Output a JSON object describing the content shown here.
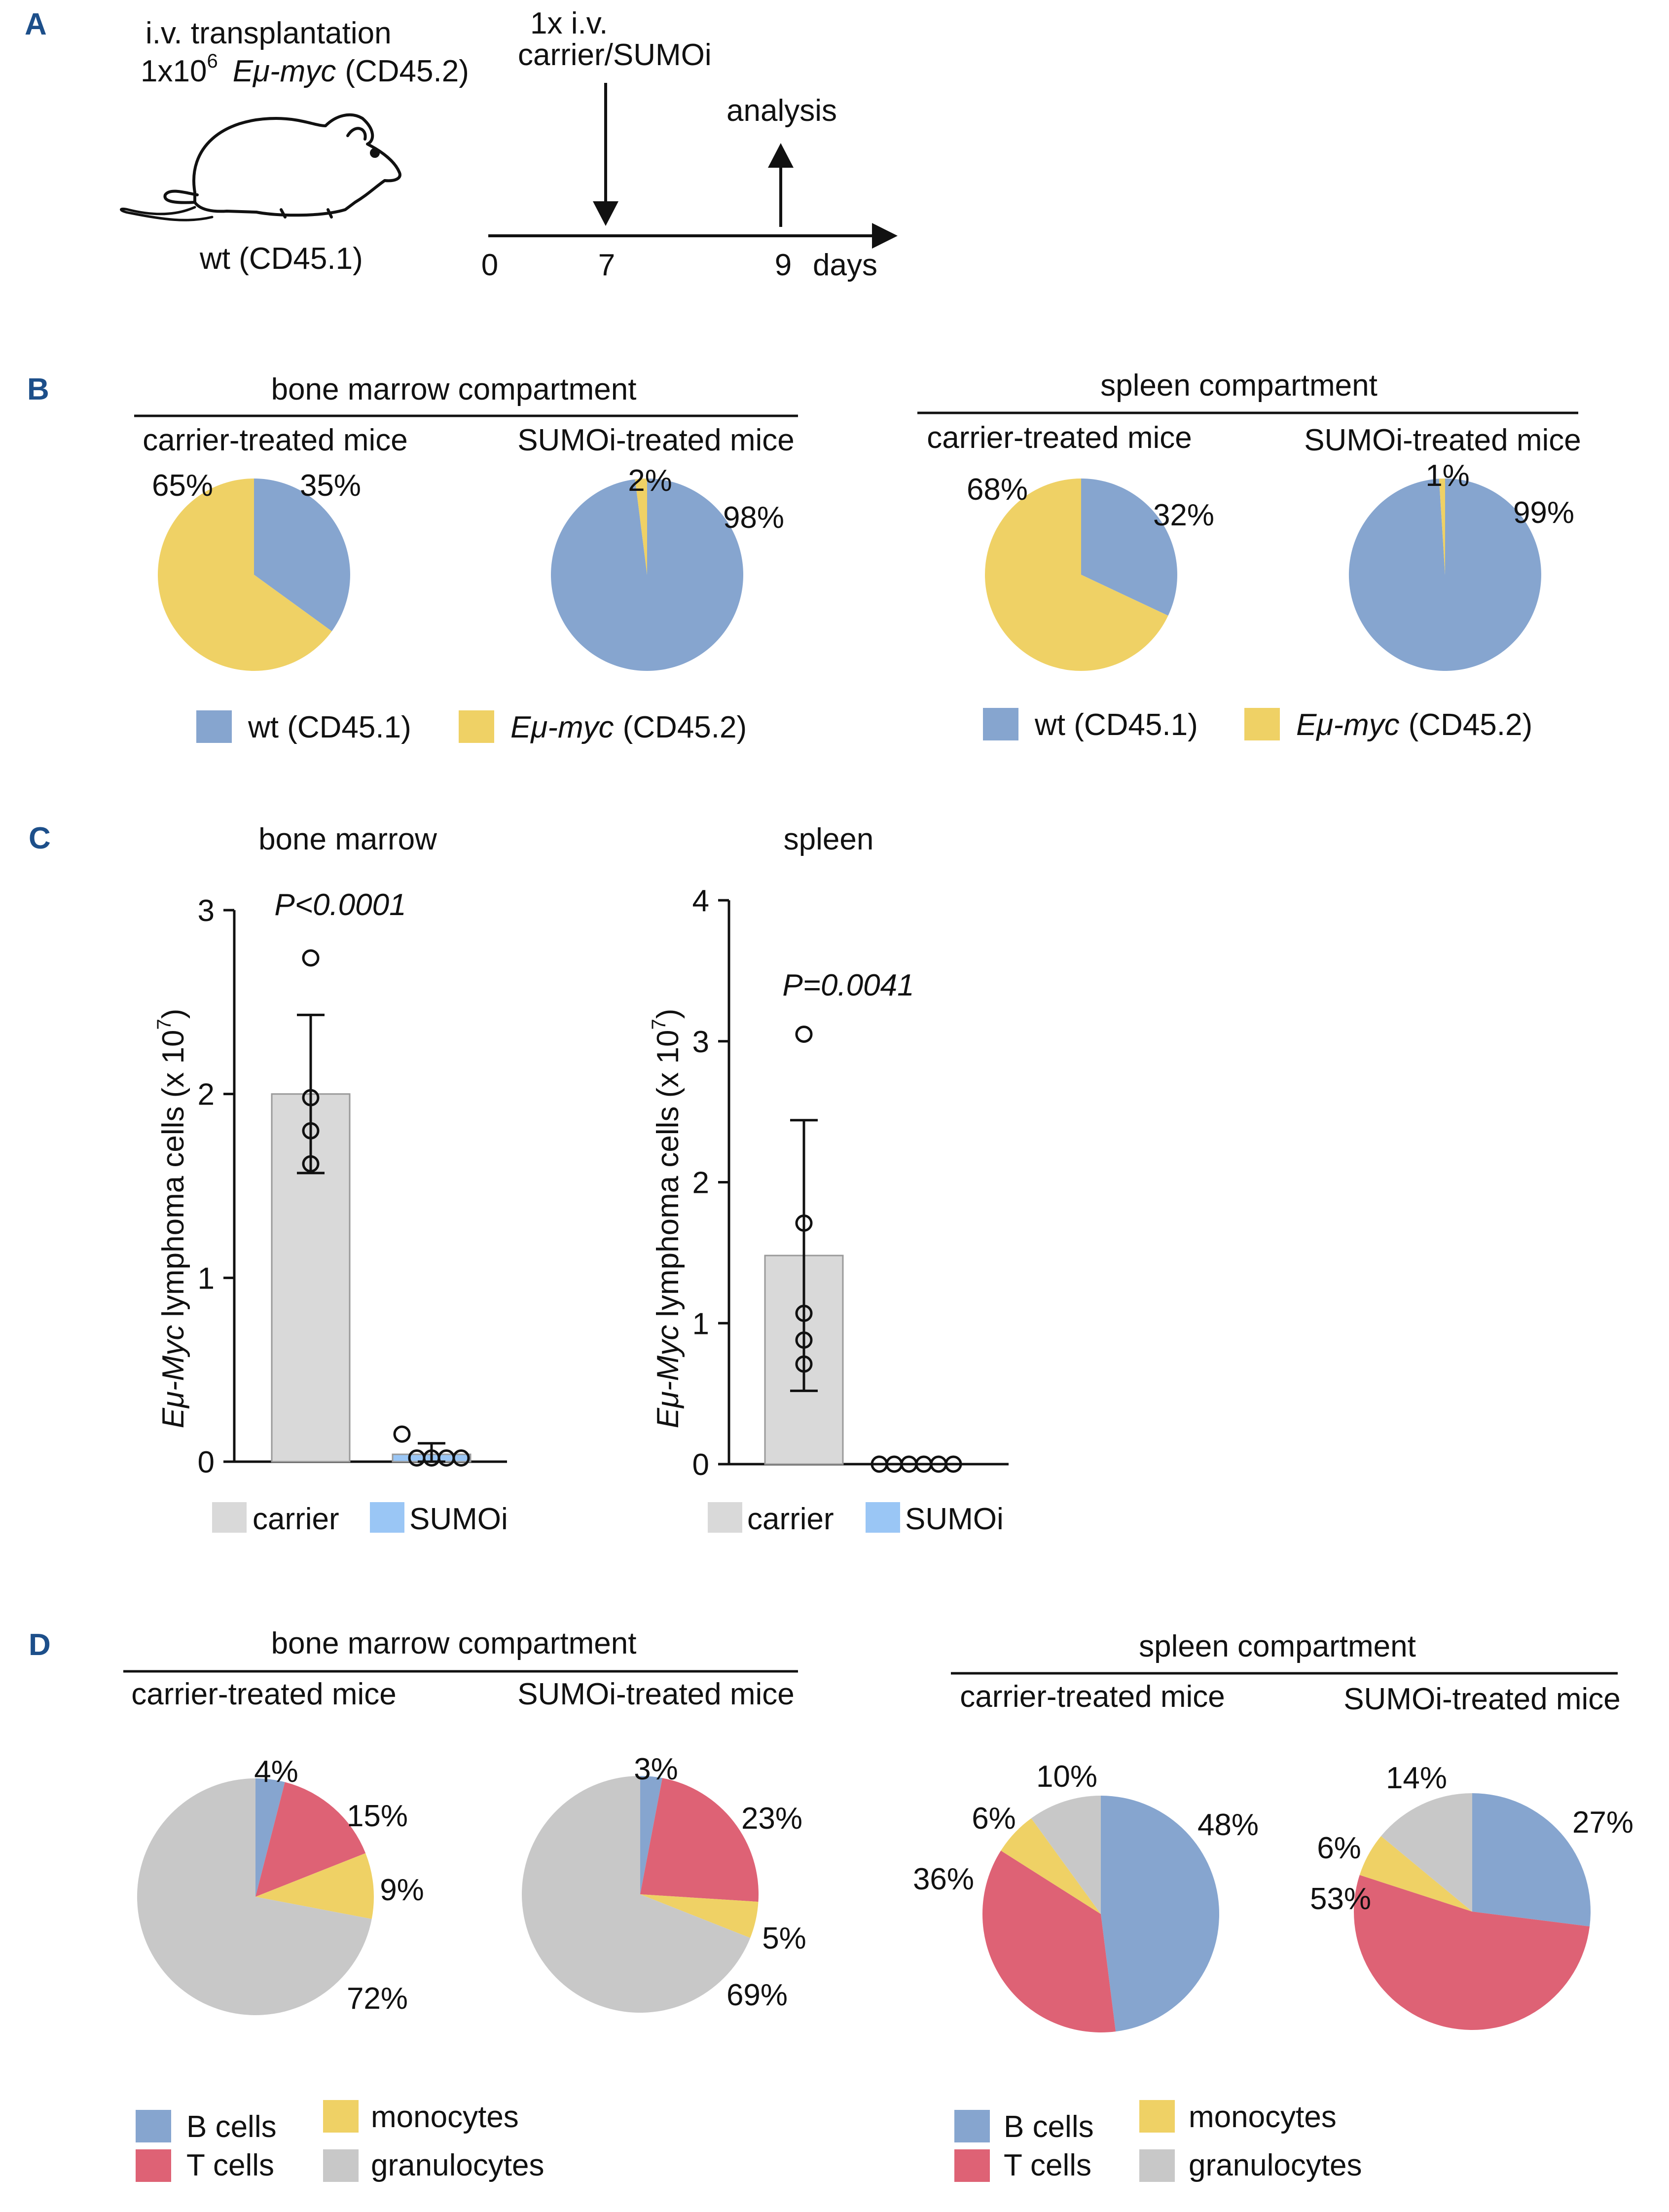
{
  "colors": {
    "wt": "#86a5cf",
    "emu": "#efd165",
    "carrier_bar": "#d9d9d9",
    "sumoi_bar": "#9ac6f5",
    "b_cells": "#86a5cf",
    "t_cells": "#de6275",
    "monocytes": "#efd165",
    "granulocytes": "#c8c8c8",
    "panel_letter": "#1d4f8a"
  },
  "panel_a": {
    "letter": "A",
    "transplant_line1": "i.v. transplantation",
    "transplant_count_prefix": "1x10",
    "transplant_count_exp": "6",
    "transplant_italic": "Eμ-myc",
    "transplant_suffix": "(CD45.2)",
    "host_label": "wt (CD45.1)",
    "treatment_line1": "1x i.v.",
    "treatment_line2": "carrier/SUMOi",
    "analysis_label": "analysis",
    "timeline_ticks": [
      "0",
      "7",
      "9"
    ],
    "days_label": "days"
  },
  "panel_b": {
    "letter": "B",
    "groups": [
      {
        "compartment": "bone marrow compartment",
        "charts": [
          {
            "title": "carrier-treated mice",
            "wt_label": "35%",
            "emu_label": "65%"
          },
          {
            "title": "SUMOi-treated mice",
            "wt_label": "98%",
            "emu_label": "2%"
          }
        ],
        "legend_wt": "wt (CD45.1)",
        "legend_emu_italic": "Eμ-myc",
        "legend_emu_suffix": "(CD45.2)"
      },
      {
        "compartment": "spleen compartment",
        "charts": [
          {
            "title": "carrier-treated mice",
            "wt_label": "32%",
            "emu_label": "68%"
          },
          {
            "title": "SUMOi-treated mice",
            "wt_label": "99%",
            "emu_label": "1%"
          }
        ],
        "legend_wt": "wt (CD45.1)",
        "legend_emu_italic": "Eμ-myc",
        "legend_emu_suffix": "(CD45.2)"
      }
    ]
  },
  "panel_c": {
    "letter": "C",
    "ylabel_italic": "Eμ-Myc",
    "ylabel_rest": "lymphoma cells (x 10",
    "ylabel_exp": "7",
    "ylabel_close": ")",
    "legend": [
      "carrier",
      "SUMOi"
    ]
  },
  "panel_d": {
    "letter": "D",
    "groups": [
      {
        "compartment": "bone marrow compartment",
        "charts": [
          {
            "title": "carrier-treated mice",
            "labels": [
              "4%",
              "15%",
              "9%",
              "72%"
            ]
          },
          {
            "title": "SUMOi-treated mice",
            "labels": [
              "3%",
              "23%",
              "5%",
              "69%"
            ]
          }
        ]
      },
      {
        "compartment": "spleen compartment",
        "charts": [
          {
            "title": "carrier-treated mice",
            "labels": [
              "48%",
              "36%",
              "6%",
              "10%"
            ]
          },
          {
            "title": "SUMOi-treated mice",
            "labels": [
              "27%",
              "53%",
              "6%",
              "14%"
            ]
          }
        ]
      }
    ],
    "legend": [
      "B cells",
      "T cells",
      "monocytes",
      "granulocytes"
    ]
  },
  "chart_data": [
    {
      "type": "pie",
      "panel": "B",
      "title": "bone marrow compartment — carrier-treated mice",
      "labels": [
        "wt (CD45.1)",
        "Eμ-myc (CD45.2)"
      ],
      "values": [
        35,
        65
      ]
    },
    {
      "type": "pie",
      "panel": "B",
      "title": "bone marrow compartment — SUMOi-treated mice",
      "labels": [
        "wt (CD45.1)",
        "Eμ-myc (CD45.2)"
      ],
      "values": [
        98,
        2
      ]
    },
    {
      "type": "pie",
      "panel": "B",
      "title": "spleen compartment — carrier-treated mice",
      "labels": [
        "wt (CD45.1)",
        "Eμ-myc (CD45.2)"
      ],
      "values": [
        32,
        68
      ]
    },
    {
      "type": "pie",
      "panel": "B",
      "title": "spleen compartment — SUMOi-treated mice",
      "labels": [
        "wt (CD45.1)",
        "Eμ-myc (CD45.2)"
      ],
      "values": [
        99,
        1
      ]
    },
    {
      "type": "bar",
      "panel": "C",
      "title": "bone marrow",
      "categories": [
        "carrier",
        "SUMOi"
      ],
      "values": [
        2.0,
        0.04
      ],
      "error": [
        0.43,
        0.06
      ],
      "points": [
        [
          2.74,
          1.98,
          1.8,
          1.62
        ],
        [
          0.15,
          0.02,
          0.02,
          0.02,
          0.02
        ]
      ],
      "annotation": "P<0.0001",
      "ylim": [
        0,
        3
      ],
      "yticks": [
        0,
        1,
        2,
        3
      ],
      "ylabel": "Eμ-Myc lymphoma cells (x 10^7)"
    },
    {
      "type": "bar",
      "panel": "C",
      "title": "spleen",
      "categories": [
        "carrier",
        "SUMOi"
      ],
      "values": [
        1.48,
        0.0
      ],
      "error": [
        0.96,
        0.0
      ],
      "points": [
        [
          3.05,
          1.71,
          1.07,
          0.88,
          0.71
        ],
        [
          0,
          0,
          0,
          0,
          0,
          0
        ]
      ],
      "annotation": "P=0.0041",
      "ylim": [
        0,
        4
      ],
      "yticks": [
        0,
        1,
        2,
        3,
        4
      ],
      "ylabel": "Eμ-Myc lymphoma cells (x 10^7)"
    },
    {
      "type": "pie",
      "panel": "D",
      "title": "bone marrow compartment — carrier-treated mice",
      "labels": [
        "B cells",
        "T cells",
        "monocytes",
        "granulocytes"
      ],
      "values": [
        4,
        15,
        9,
        72
      ]
    },
    {
      "type": "pie",
      "panel": "D",
      "title": "bone marrow compartment — SUMOi-treated mice",
      "labels": [
        "B cells",
        "T cells",
        "monocytes",
        "granulocytes"
      ],
      "values": [
        3,
        23,
        5,
        69
      ]
    },
    {
      "type": "pie",
      "panel": "D",
      "title": "spleen compartment — carrier-treated mice",
      "labels": [
        "B cells",
        "T cells",
        "monocytes",
        "granulocytes"
      ],
      "values": [
        48,
        36,
        6,
        10
      ]
    },
    {
      "type": "pie",
      "panel": "D",
      "title": "spleen compartment — SUMOi-treated mice",
      "labels": [
        "B cells",
        "T cells",
        "monocytes",
        "granulocytes"
      ],
      "values": [
        27,
        53,
        6,
        14
      ]
    }
  ]
}
